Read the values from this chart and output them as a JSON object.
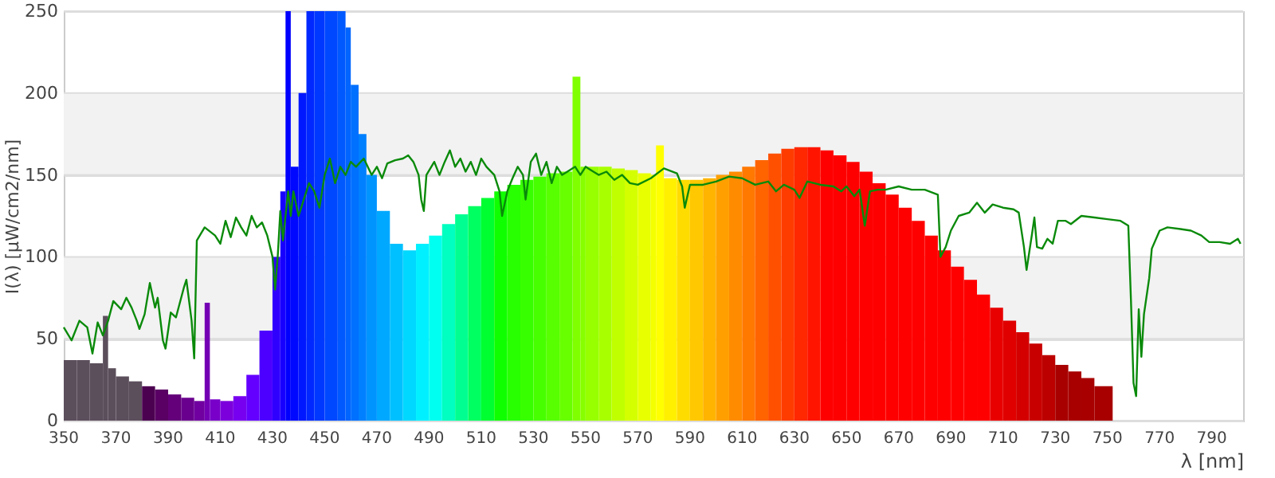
{
  "chart_data": {
    "type": "histogram",
    "xlabel": "λ [nm]",
    "ylabel": "I(λ) [µW/cm2/nm]",
    "bins": [
      350,
      355,
      360,
      365,
      367,
      370,
      375,
      380,
      385,
      390,
      395,
      400,
      404,
      406,
      410,
      415,
      420,
      425,
      430,
      433,
      435,
      437,
      440,
      443,
      446,
      450,
      455,
      458,
      460,
      463,
      466,
      470,
      475,
      480,
      485,
      490,
      495,
      500,
      505,
      510,
      515,
      520,
      525,
      530,
      535,
      540,
      545,
      548,
      550,
      555,
      560,
      565,
      570,
      575,
      577,
      580,
      585,
      590,
      595,
      600,
      605,
      610,
      615,
      620,
      625,
      630,
      635,
      640,
      645,
      650,
      655,
      660,
      665,
      670,
      675,
      680,
      685,
      690,
      695,
      700,
      705,
      710,
      715,
      720,
      725,
      730,
      735,
      740,
      745,
      752
    ],
    "values": [
      37,
      37,
      35,
      64,
      32,
      27,
      24,
      21,
      19,
      16,
      14,
      12,
      72,
      13,
      12,
      15,
      28,
      55,
      100,
      140,
      250,
      155,
      200,
      250,
      250,
      250,
      250,
      240,
      205,
      175,
      150,
      128,
      108,
      104,
      108,
      113,
      120,
      126,
      131,
      136,
      140,
      144,
      147,
      149,
      151,
      152,
      210,
      155,
      155,
      155,
      154,
      153,
      151,
      150,
      168,
      148,
      147,
      147,
      148,
      150,
      152,
      155,
      159,
      163,
      166,
      167,
      167,
      165,
      162,
      158,
      152,
      145,
      138,
      130,
      122,
      113,
      104,
      94,
      86,
      77,
      69,
      61,
      54,
      47,
      40,
      34,
      30,
      26,
      21
    ],
    "colors": [
      "#5c4f5c",
      "#5c4f5c",
      "#5c4f5c",
      "#5c4f5c",
      "#5c4f5c",
      "#5c4f5c",
      "#5c4f5c",
      "#4c0050",
      "#5a0064",
      "#64007a",
      "#6a008e",
      "#7000a0",
      "#7400b4",
      "#7800c8",
      "#7c00dc",
      "#7800f0",
      "#6400ff",
      "#4c00ff",
      "#3000ff",
      "#1800ff",
      "#0000ff",
      "#0008ff",
      "#0018ff",
      "#0028ff",
      "#0038ff",
      "#0048ff",
      "#0058ff",
      "#0064ff",
      "#0070ff",
      "#0080ff",
      "#0094ff",
      "#00a8ff",
      "#00c0ff",
      "#00d8ff",
      "#00f0ff",
      "#00fff0",
      "#00ffc0",
      "#00ff90",
      "#00ff60",
      "#00ff30",
      "#10ff00",
      "#28ff00",
      "#38ff00",
      "#48ff00",
      "#58ff00",
      "#68ff00",
      "#80ff00",
      "#88ff00",
      "#98ff00",
      "#a8ff00",
      "#c0ff00",
      "#d4ff00",
      "#e8ff00",
      "#f4ff00",
      "#ffff00",
      "#fff000",
      "#ffdc00",
      "#ffc800",
      "#ffb400",
      "#ffa000",
      "#ff8c00",
      "#ff7800",
      "#ff6400",
      "#ff5000",
      "#ff3c00",
      "#ff2800",
      "#ff1400",
      "#ff0000",
      "#ff0000",
      "#ff0000",
      "#ff0000",
      "#ff0000",
      "#ff0000",
      "#ff0000",
      "#ff0000",
      "#ff0000",
      "#ff0000",
      "#ff0000",
      "#ff0000",
      "#ff0000",
      "#e80000",
      "#e00000",
      "#d40000",
      "#c80000",
      "#bc0000",
      "#a80000",
      "#a80000",
      "#a80000",
      "#a80000"
    ],
    "series": [
      {
        "type": "line",
        "color": "#0a8a0a",
        "x": [
          350,
          353,
          356,
          359,
          361,
          363,
          365,
          367,
          369,
          372,
          374,
          376,
          378,
          379,
          381,
          383,
          385,
          386,
          388,
          389,
          391,
          393,
          396,
          397,
          399,
          400,
          401,
          404,
          408,
          410,
          412,
          414,
          416,
          418,
          420,
          422,
          424,
          426,
          428,
          430,
          431,
          432,
          433,
          434,
          436,
          437,
          438,
          440,
          442,
          444,
          446,
          448,
          450,
          452,
          454,
          456,
          458,
          460,
          462,
          465,
          468,
          470,
          472,
          474,
          477,
          480,
          482,
          484,
          486,
          487,
          488,
          489,
          492,
          494,
          496,
          498,
          500,
          502,
          504,
          506,
          508,
          510,
          512,
          515,
          517,
          518,
          520,
          522,
          524,
          526,
          527,
          529,
          531,
          533,
          535,
          537,
          539,
          541,
          543,
          546,
          548,
          550,
          552,
          555,
          558,
          561,
          564,
          567,
          570,
          575,
          580,
          585,
          587,
          588,
          590,
          595,
          600,
          605,
          610,
          615,
          620,
          623,
          626,
          630,
          632,
          635,
          640,
          645,
          648,
          650,
          653,
          655,
          657,
          659,
          662,
          665,
          670,
          675,
          680,
          685,
          686,
          688,
          690,
          693,
          697,
          700,
          703,
          706,
          710,
          714,
          716,
          718,
          719,
          721,
          722,
          723,
          725,
          727,
          729,
          731,
          734,
          736,
          740,
          745,
          750,
          755,
          758,
          759,
          760,
          761,
          762,
          763,
          764,
          766,
          767,
          770,
          773,
          778,
          782,
          786,
          789,
          793,
          797,
          800,
          801
        ],
        "values": [
          57,
          49,
          61,
          57,
          41,
          60,
          52,
          61,
          73,
          68,
          75,
          69,
          61,
          56,
          65,
          84,
          69,
          75,
          49,
          44,
          66,
          63,
          81,
          86,
          61,
          38,
          110,
          118,
          113,
          108,
          122,
          112,
          124,
          118,
          113,
          125,
          118,
          121,
          113,
          100,
          80,
          100,
          128,
          110,
          140,
          125,
          140,
          125,
          135,
          145,
          140,
          130,
          150,
          160,
          145,
          155,
          150,
          158,
          155,
          160,
          150,
          155,
          148,
          157,
          159,
          160,
          162,
          158,
          150,
          135,
          128,
          150,
          158,
          150,
          158,
          165,
          155,
          160,
          152,
          158,
          150,
          160,
          155,
          150,
          140,
          125,
          140,
          148,
          155,
          150,
          135,
          158,
          163,
          150,
          158,
          145,
          155,
          150,
          152,
          155,
          150,
          155,
          153,
          150,
          152,
          147,
          150,
          145,
          144,
          148,
          154,
          151,
          143,
          130,
          144,
          144,
          146,
          149,
          148,
          144,
          146,
          140,
          144,
          141,
          136,
          146,
          144,
          143,
          140,
          143,
          137,
          141,
          119,
          140,
          141,
          141,
          143,
          141,
          141,
          138,
          100,
          106,
          116,
          125,
          127,
          133,
          127,
          132,
          130,
          129,
          127,
          106,
          92,
          113,
          124,
          106,
          105,
          111,
          108,
          122,
          122,
          120,
          125,
          124,
          123,
          122,
          119,
          74,
          23,
          15,
          68,
          39,
          65,
          87,
          105,
          116,
          118,
          117,
          116,
          113,
          109,
          109,
          108,
          111,
          108
        ]
      }
    ],
    "xlim": [
      350,
      802
    ],
    "xticks": [
      350,
      370,
      390,
      410,
      430,
      450,
      470,
      490,
      510,
      530,
      550,
      570,
      590,
      610,
      630,
      650,
      670,
      690,
      710,
      730,
      750,
      770,
      790
    ],
    "ylim": [
      0,
      250
    ],
    "yticks": [
      0,
      50,
      100,
      150,
      200,
      250
    ],
    "grid": "y",
    "bands": [
      {
        "axis": "y",
        "from": 50,
        "to": 100,
        "color": "#f2f2f2"
      },
      {
        "axis": "y",
        "from": 150,
        "to": 200,
        "color": "#f2f2f2"
      }
    ]
  }
}
